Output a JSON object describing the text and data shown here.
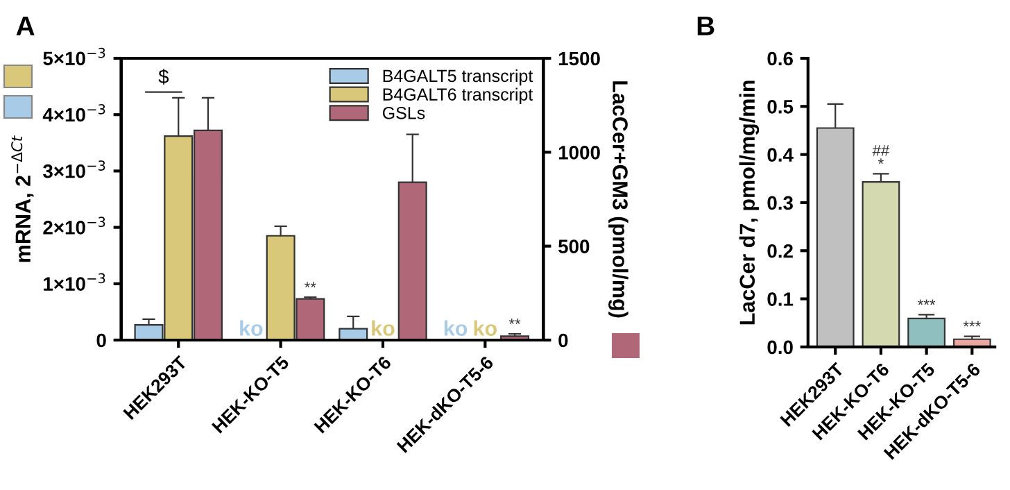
{
  "chart_data": [
    {
      "type": "bar",
      "title": "A",
      "ylabel": "mRNA, 2$^{−ΔCt}$",
      "y2label": "LacCer+GM3 (pmol/mg)",
      "categories": [
        "HEK293T",
        "HEK-KO-T5",
        "HEK-KO-T6",
        "HEK-dKO-T5-6"
      ],
      "series": [
        {
          "name": "B4GALT5 transcript",
          "color": "#a8cce8",
          "values": [
            0.00027,
            null,
            0.0002,
            null
          ],
          "errors": [
            [
              0.00027,
              0.00037
            ],
            null,
            [
              0.0002,
              0.00042
            ],
            null
          ],
          "value_labels": [
            null,
            "ko",
            null,
            "ko"
          ]
        },
        {
          "name": "B4GALT6 transcript",
          "color": "#d9c77a",
          "values": [
            0.00362,
            0.00185,
            null,
            null
          ],
          "errors": [
            [
              0.00362,
              0.0043
            ],
            [
              0.00185,
              0.00202
            ],
            null,
            null
          ],
          "value_labels": [
            null,
            null,
            "ko",
            "ko"
          ]
        },
        {
          "name": "GSLs",
          "color": "#b06878",
          "axis": "y2",
          "values": [
            1116,
            219,
            840,
            21
          ],
          "errors": [
            [
              1116,
              1290
            ],
            [
              219,
              228
            ],
            [
              840,
              1095
            ],
            [
              21,
              33
            ]
          ],
          "value_labels": [
            null,
            "**",
            null,
            "**"
          ]
        }
      ],
      "ylim": [
        0,
        0.005
      ],
      "yticks": [
        {
          "value": 0,
          "label": "0"
        },
        {
          "value": 0.001,
          "label": "1×10$^{−3}$"
        },
        {
          "value": 0.002,
          "label": "2×10$^{−3}$"
        },
        {
          "value": 0.003,
          "label": "3×10$^{−3}$"
        },
        {
          "value": 0.004,
          "label": "4×10$^{−3}$"
        },
        {
          "value": 0.005,
          "label": "5×10$^{−3}$"
        }
      ],
      "y2lim": [
        0,
        1500
      ],
      "y2ticks": [
        0,
        500,
        1000,
        1500
      ],
      "annotations": [
        {
          "text": "$",
          "x": "HEK293T",
          "y": 0.0044
        }
      ],
      "legend": "top right",
      "grid": false
    },
    {
      "type": "bar",
      "title": "B",
      "ylabel": "LacCer d7, pmol/mg/min",
      "categories": [
        "HEK293T",
        "HEK-KO-T6",
        "HEK-KO-T5",
        "HEK-dKO-T5-6"
      ],
      "values": [
        0.455,
        0.343,
        0.059,
        0.016
      ],
      "colors": [
        "#c0c0c0",
        "#d4d9b0",
        "#8fbfbf",
        "#e8a8a0"
      ],
      "errors": [
        [
          0.455,
          0.505
        ],
        [
          0.343,
          0.36
        ],
        [
          0.059,
          0.067
        ],
        [
          0.016,
          0.022
        ]
      ],
      "value_labels": [
        null,
        "##\n*",
        "***",
        "***"
      ],
      "ylim": [
        0,
        0.6
      ],
      "yticks": [
        {
          "value": 0,
          "label": "0.0"
        },
        0.1,
        0.2,
        0.3,
        0.4,
        0.5,
        0.6
      ],
      "legend": false,
      "grid": false
    }
  ]
}
